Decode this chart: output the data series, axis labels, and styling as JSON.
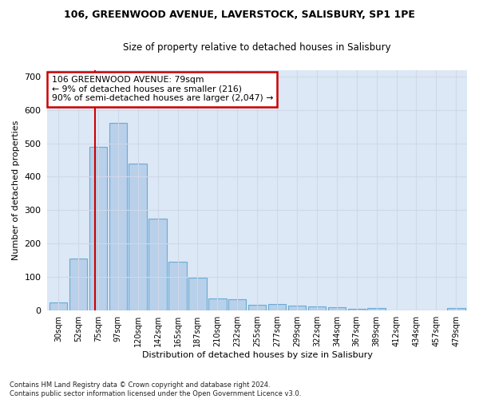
{
  "title_line1": "106, GREENWOOD AVENUE, LAVERSTOCK, SALISBURY, SP1 1PE",
  "title_line2": "Size of property relative to detached houses in Salisbury",
  "xlabel": "Distribution of detached houses by size in Salisbury",
  "ylabel": "Number of detached properties",
  "footnote": "Contains HM Land Registry data © Crown copyright and database right 2024.\nContains public sector information licensed under the Open Government Licence v3.0.",
  "bar_labels": [
    "30sqm",
    "52sqm",
    "75sqm",
    "97sqm",
    "120sqm",
    "142sqm",
    "165sqm",
    "187sqm",
    "210sqm",
    "232sqm",
    "255sqm",
    "277sqm",
    "299sqm",
    "322sqm",
    "344sqm",
    "367sqm",
    "389sqm",
    "412sqm",
    "434sqm",
    "457sqm",
    "479sqm"
  ],
  "bar_heights": [
    22,
    155,
    490,
    560,
    440,
    275,
    145,
    97,
    35,
    33,
    15,
    18,
    13,
    12,
    8,
    5,
    7,
    0,
    0,
    0,
    7
  ],
  "bar_color": "#b8d0ea",
  "bar_edge_color": "#6aaad4",
  "annotation_line1": "106 GREENWOOD AVENUE: 79sqm",
  "annotation_line2": "← 9% of detached houses are smaller (216)",
  "annotation_line3": "90% of semi-detached houses are larger (2,047) →",
  "vline_x": 1.83,
  "vline_color": "#cc0000",
  "box_color": "#cc0000",
  "ylim": [
    0,
    720
  ],
  "background_color": "#ffffff",
  "grid_color": "#d0d8e8",
  "axes_bg_color": "#dce8f5"
}
